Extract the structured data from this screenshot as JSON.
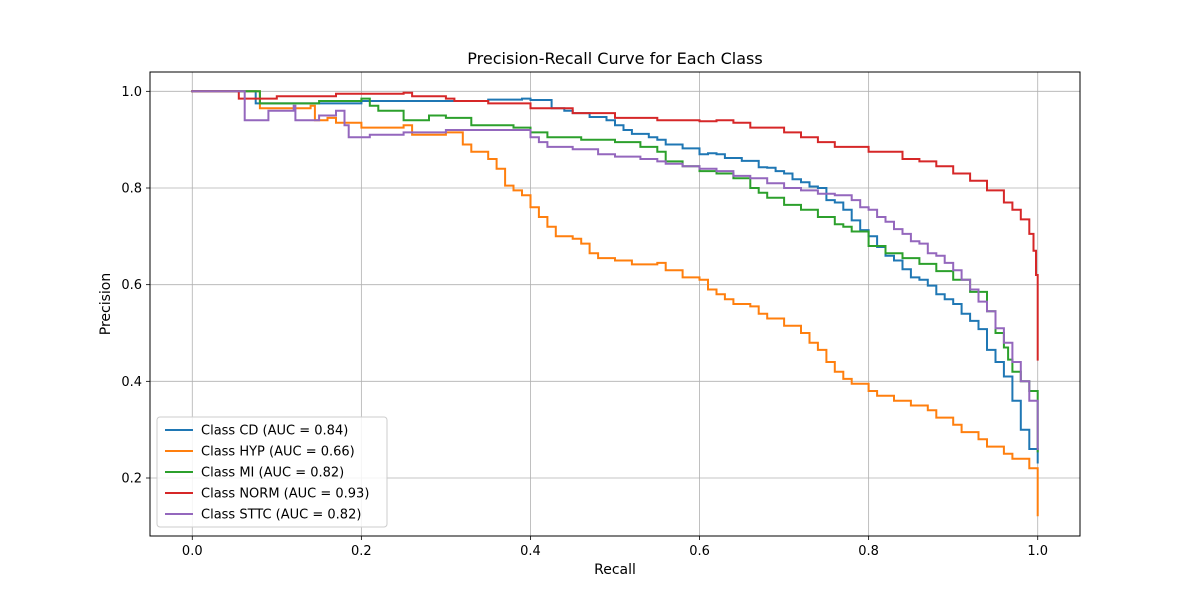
{
  "chart_data": {
    "type": "line",
    "title": "Precision-Recall Curve for Each Class",
    "xlabel": "Recall",
    "ylabel": "Precision",
    "xlim": [
      -0.05,
      1.05
    ],
    "ylim": [
      0.08,
      1.04
    ],
    "xticks": [
      0.0,
      0.2,
      0.4,
      0.6,
      0.8,
      1.0
    ],
    "xtick_labels": [
      "0.0",
      "0.2",
      "0.4",
      "0.6",
      "0.8",
      "1.0"
    ],
    "yticks": [
      0.2,
      0.4,
      0.6,
      0.8,
      1.0
    ],
    "ytick_labels": [
      "0.2",
      "0.4",
      "0.6",
      "0.8",
      "1.0"
    ],
    "grid": true,
    "legend_position": "lower-left",
    "series": [
      {
        "name": "Class CD (AUC = 0.84)",
        "color": "#1f77b4",
        "points": [
          [
            0.0,
            1.0
          ],
          [
            0.07,
            1.0
          ],
          [
            0.075,
            0.975
          ],
          [
            0.15,
            0.975
          ],
          [
            0.2,
            0.98
          ],
          [
            0.3,
            0.98
          ],
          [
            0.35,
            0.983
          ],
          [
            0.39,
            0.985
          ],
          [
            0.4,
            0.982
          ],
          [
            0.42,
            0.982
          ],
          [
            0.425,
            0.965
          ],
          [
            0.44,
            0.96
          ],
          [
            0.45,
            0.955
          ],
          [
            0.47,
            0.947
          ],
          [
            0.49,
            0.94
          ],
          [
            0.5,
            0.93
          ],
          [
            0.51,
            0.92
          ],
          [
            0.52,
            0.912
          ],
          [
            0.53,
            0.912
          ],
          [
            0.54,
            0.905
          ],
          [
            0.55,
            0.9
          ],
          [
            0.56,
            0.89
          ],
          [
            0.58,
            0.882
          ],
          [
            0.6,
            0.87
          ],
          [
            0.61,
            0.872
          ],
          [
            0.62,
            0.87
          ],
          [
            0.63,
            0.862
          ],
          [
            0.65,
            0.856
          ],
          [
            0.67,
            0.843
          ],
          [
            0.68,
            0.842
          ],
          [
            0.69,
            0.835
          ],
          [
            0.7,
            0.83
          ],
          [
            0.71,
            0.818
          ],
          [
            0.72,
            0.812
          ],
          [
            0.73,
            0.803
          ],
          [
            0.74,
            0.8
          ],
          [
            0.75,
            0.775
          ],
          [
            0.76,
            0.77
          ],
          [
            0.77,
            0.755
          ],
          [
            0.78,
            0.733
          ],
          [
            0.79,
            0.713
          ],
          [
            0.8,
            0.7
          ],
          [
            0.81,
            0.678
          ],
          [
            0.82,
            0.66
          ],
          [
            0.83,
            0.65
          ],
          [
            0.84,
            0.632
          ],
          [
            0.85,
            0.615
          ],
          [
            0.86,
            0.61
          ],
          [
            0.87,
            0.598
          ],
          [
            0.88,
            0.58
          ],
          [
            0.89,
            0.57
          ],
          [
            0.9,
            0.56
          ],
          [
            0.91,
            0.54
          ],
          [
            0.92,
            0.525
          ],
          [
            0.93,
            0.508
          ],
          [
            0.94,
            0.465
          ],
          [
            0.95,
            0.44
          ],
          [
            0.96,
            0.41
          ],
          [
            0.97,
            0.36
          ],
          [
            0.98,
            0.3
          ],
          [
            0.99,
            0.26
          ],
          [
            1.0,
            0.232
          ]
        ]
      },
      {
        "name": "Class HYP (AUC = 0.66)",
        "color": "#ff7f0e",
        "points": [
          [
            0.0,
            1.0
          ],
          [
            0.075,
            1.0
          ],
          [
            0.08,
            0.965
          ],
          [
            0.14,
            0.97
          ],
          [
            0.145,
            0.94
          ],
          [
            0.16,
            0.945
          ],
          [
            0.17,
            0.935
          ],
          [
            0.2,
            0.925
          ],
          [
            0.25,
            0.93
          ],
          [
            0.26,
            0.91
          ],
          [
            0.3,
            0.915
          ],
          [
            0.32,
            0.89
          ],
          [
            0.33,
            0.875
          ],
          [
            0.35,
            0.86
          ],
          [
            0.36,
            0.84
          ],
          [
            0.37,
            0.805
          ],
          [
            0.38,
            0.795
          ],
          [
            0.39,
            0.785
          ],
          [
            0.4,
            0.76
          ],
          [
            0.41,
            0.74
          ],
          [
            0.42,
            0.72
          ],
          [
            0.43,
            0.7
          ],
          [
            0.45,
            0.695
          ],
          [
            0.46,
            0.685
          ],
          [
            0.47,
            0.665
          ],
          [
            0.48,
            0.655
          ],
          [
            0.5,
            0.65
          ],
          [
            0.52,
            0.642
          ],
          [
            0.55,
            0.645
          ],
          [
            0.56,
            0.63
          ],
          [
            0.58,
            0.615
          ],
          [
            0.6,
            0.61
          ],
          [
            0.61,
            0.59
          ],
          [
            0.62,
            0.58
          ],
          [
            0.63,
            0.57
          ],
          [
            0.64,
            0.56
          ],
          [
            0.66,
            0.555
          ],
          [
            0.67,
            0.54
          ],
          [
            0.68,
            0.53
          ],
          [
            0.7,
            0.515
          ],
          [
            0.72,
            0.5
          ],
          [
            0.73,
            0.48
          ],
          [
            0.74,
            0.465
          ],
          [
            0.75,
            0.44
          ],
          [
            0.76,
            0.42
          ],
          [
            0.77,
            0.405
          ],
          [
            0.78,
            0.395
          ],
          [
            0.8,
            0.38
          ],
          [
            0.81,
            0.37
          ],
          [
            0.83,
            0.36
          ],
          [
            0.85,
            0.35
          ],
          [
            0.87,
            0.34
          ],
          [
            0.88,
            0.325
          ],
          [
            0.9,
            0.31
          ],
          [
            0.91,
            0.295
          ],
          [
            0.93,
            0.28
          ],
          [
            0.94,
            0.265
          ],
          [
            0.96,
            0.25
          ],
          [
            0.97,
            0.24
          ],
          [
            0.99,
            0.22
          ],
          [
            1.0,
            0.21
          ],
          [
            1.0,
            0.18
          ],
          [
            1.0,
            0.14
          ],
          [
            1.0,
            0.123
          ]
        ]
      },
      {
        "name": "Class MI (AUC = 0.82)",
        "color": "#2ca02c",
        "points": [
          [
            0.0,
            1.0
          ],
          [
            0.075,
            1.0
          ],
          [
            0.08,
            0.975
          ],
          [
            0.15,
            0.98
          ],
          [
            0.2,
            0.985
          ],
          [
            0.21,
            0.97
          ],
          [
            0.22,
            0.96
          ],
          [
            0.25,
            0.94
          ],
          [
            0.28,
            0.95
          ],
          [
            0.3,
            0.945
          ],
          [
            0.33,
            0.93
          ],
          [
            0.35,
            0.93
          ],
          [
            0.38,
            0.925
          ],
          [
            0.4,
            0.915
          ],
          [
            0.42,
            0.905
          ],
          [
            0.44,
            0.905
          ],
          [
            0.46,
            0.9
          ],
          [
            0.48,
            0.9
          ],
          [
            0.5,
            0.895
          ],
          [
            0.53,
            0.885
          ],
          [
            0.55,
            0.875
          ],
          [
            0.56,
            0.855
          ],
          [
            0.58,
            0.845
          ],
          [
            0.6,
            0.835
          ],
          [
            0.62,
            0.83
          ],
          [
            0.64,
            0.82
          ],
          [
            0.66,
            0.8
          ],
          [
            0.67,
            0.79
          ],
          [
            0.68,
            0.78
          ],
          [
            0.7,
            0.765
          ],
          [
            0.72,
            0.755
          ],
          [
            0.74,
            0.74
          ],
          [
            0.76,
            0.725
          ],
          [
            0.77,
            0.72
          ],
          [
            0.78,
            0.71
          ],
          [
            0.8,
            0.68
          ],
          [
            0.82,
            0.665
          ],
          [
            0.84,
            0.655
          ],
          [
            0.86,
            0.643
          ],
          [
            0.88,
            0.628
          ],
          [
            0.9,
            0.61
          ],
          [
            0.92,
            0.585
          ],
          [
            0.94,
            0.545
          ],
          [
            0.95,
            0.5
          ],
          [
            0.96,
            0.47
          ],
          [
            0.965,
            0.445
          ],
          [
            0.97,
            0.42
          ],
          [
            0.98,
            0.4
          ],
          [
            0.99,
            0.38
          ],
          [
            1.0,
            0.3
          ],
          [
            1.0,
            0.255
          ]
        ]
      },
      {
        "name": "Class NORM (AUC = 0.93)",
        "color": "#d62728",
        "points": [
          [
            0.0,
            1.0
          ],
          [
            0.05,
            1.0
          ],
          [
            0.055,
            0.985
          ],
          [
            0.1,
            0.99
          ],
          [
            0.17,
            0.995
          ],
          [
            0.22,
            0.995
          ],
          [
            0.25,
            0.997
          ],
          [
            0.26,
            0.99
          ],
          [
            0.3,
            0.985
          ],
          [
            0.31,
            0.98
          ],
          [
            0.35,
            0.975
          ],
          [
            0.4,
            0.965
          ],
          [
            0.45,
            0.955
          ],
          [
            0.5,
            0.945
          ],
          [
            0.55,
            0.94
          ],
          [
            0.6,
            0.938
          ],
          [
            0.62,
            0.94
          ],
          [
            0.64,
            0.935
          ],
          [
            0.66,
            0.925
          ],
          [
            0.7,
            0.915
          ],
          [
            0.72,
            0.905
          ],
          [
            0.74,
            0.895
          ],
          [
            0.76,
            0.885
          ],
          [
            0.8,
            0.875
          ],
          [
            0.84,
            0.86
          ],
          [
            0.86,
            0.855
          ],
          [
            0.88,
            0.845
          ],
          [
            0.9,
            0.83
          ],
          [
            0.92,
            0.815
          ],
          [
            0.94,
            0.795
          ],
          [
            0.96,
            0.77
          ],
          [
            0.97,
            0.755
          ],
          [
            0.98,
            0.735
          ],
          [
            0.99,
            0.705
          ],
          [
            0.995,
            0.67
          ],
          [
            0.998,
            0.62
          ],
          [
            1.0,
            0.565
          ],
          [
            1.0,
            0.445
          ]
        ]
      },
      {
        "name": "Class STTC (AUC = 0.82)",
        "color": "#9467bd",
        "points": [
          [
            0.0,
            1.0
          ],
          [
            0.06,
            1.0
          ],
          [
            0.062,
            0.94
          ],
          [
            0.09,
            0.96
          ],
          [
            0.12,
            0.97
          ],
          [
            0.122,
            0.94
          ],
          [
            0.15,
            0.95
          ],
          [
            0.17,
            0.96
          ],
          [
            0.18,
            0.93
          ],
          [
            0.185,
            0.905
          ],
          [
            0.21,
            0.91
          ],
          [
            0.25,
            0.915
          ],
          [
            0.28,
            0.915
          ],
          [
            0.3,
            0.92
          ],
          [
            0.35,
            0.92
          ],
          [
            0.4,
            0.905
          ],
          [
            0.41,
            0.895
          ],
          [
            0.42,
            0.885
          ],
          [
            0.45,
            0.88
          ],
          [
            0.47,
            0.88
          ],
          [
            0.48,
            0.87
          ],
          [
            0.5,
            0.865
          ],
          [
            0.53,
            0.86
          ],
          [
            0.55,
            0.855
          ],
          [
            0.56,
            0.85
          ],
          [
            0.58,
            0.845
          ],
          [
            0.6,
            0.84
          ],
          [
            0.62,
            0.835
          ],
          [
            0.64,
            0.825
          ],
          [
            0.66,
            0.82
          ],
          [
            0.68,
            0.81
          ],
          [
            0.7,
            0.8
          ],
          [
            0.72,
            0.795
          ],
          [
            0.74,
            0.788
          ],
          [
            0.76,
            0.785
          ],
          [
            0.78,
            0.775
          ],
          [
            0.79,
            0.76
          ],
          [
            0.8,
            0.755
          ],
          [
            0.81,
            0.74
          ],
          [
            0.82,
            0.73
          ],
          [
            0.83,
            0.715
          ],
          [
            0.84,
            0.705
          ],
          [
            0.85,
            0.69
          ],
          [
            0.86,
            0.685
          ],
          [
            0.87,
            0.665
          ],
          [
            0.88,
            0.66
          ],
          [
            0.89,
            0.645
          ],
          [
            0.9,
            0.63
          ],
          [
            0.91,
            0.61
          ],
          [
            0.92,
            0.59
          ],
          [
            0.93,
            0.565
          ],
          [
            0.94,
            0.545
          ],
          [
            0.95,
            0.51
          ],
          [
            0.96,
            0.48
          ],
          [
            0.97,
            0.44
          ],
          [
            0.98,
            0.4
          ],
          [
            0.99,
            0.36
          ],
          [
            1.0,
            0.315
          ],
          [
            1.0,
            0.26
          ]
        ]
      }
    ]
  }
}
